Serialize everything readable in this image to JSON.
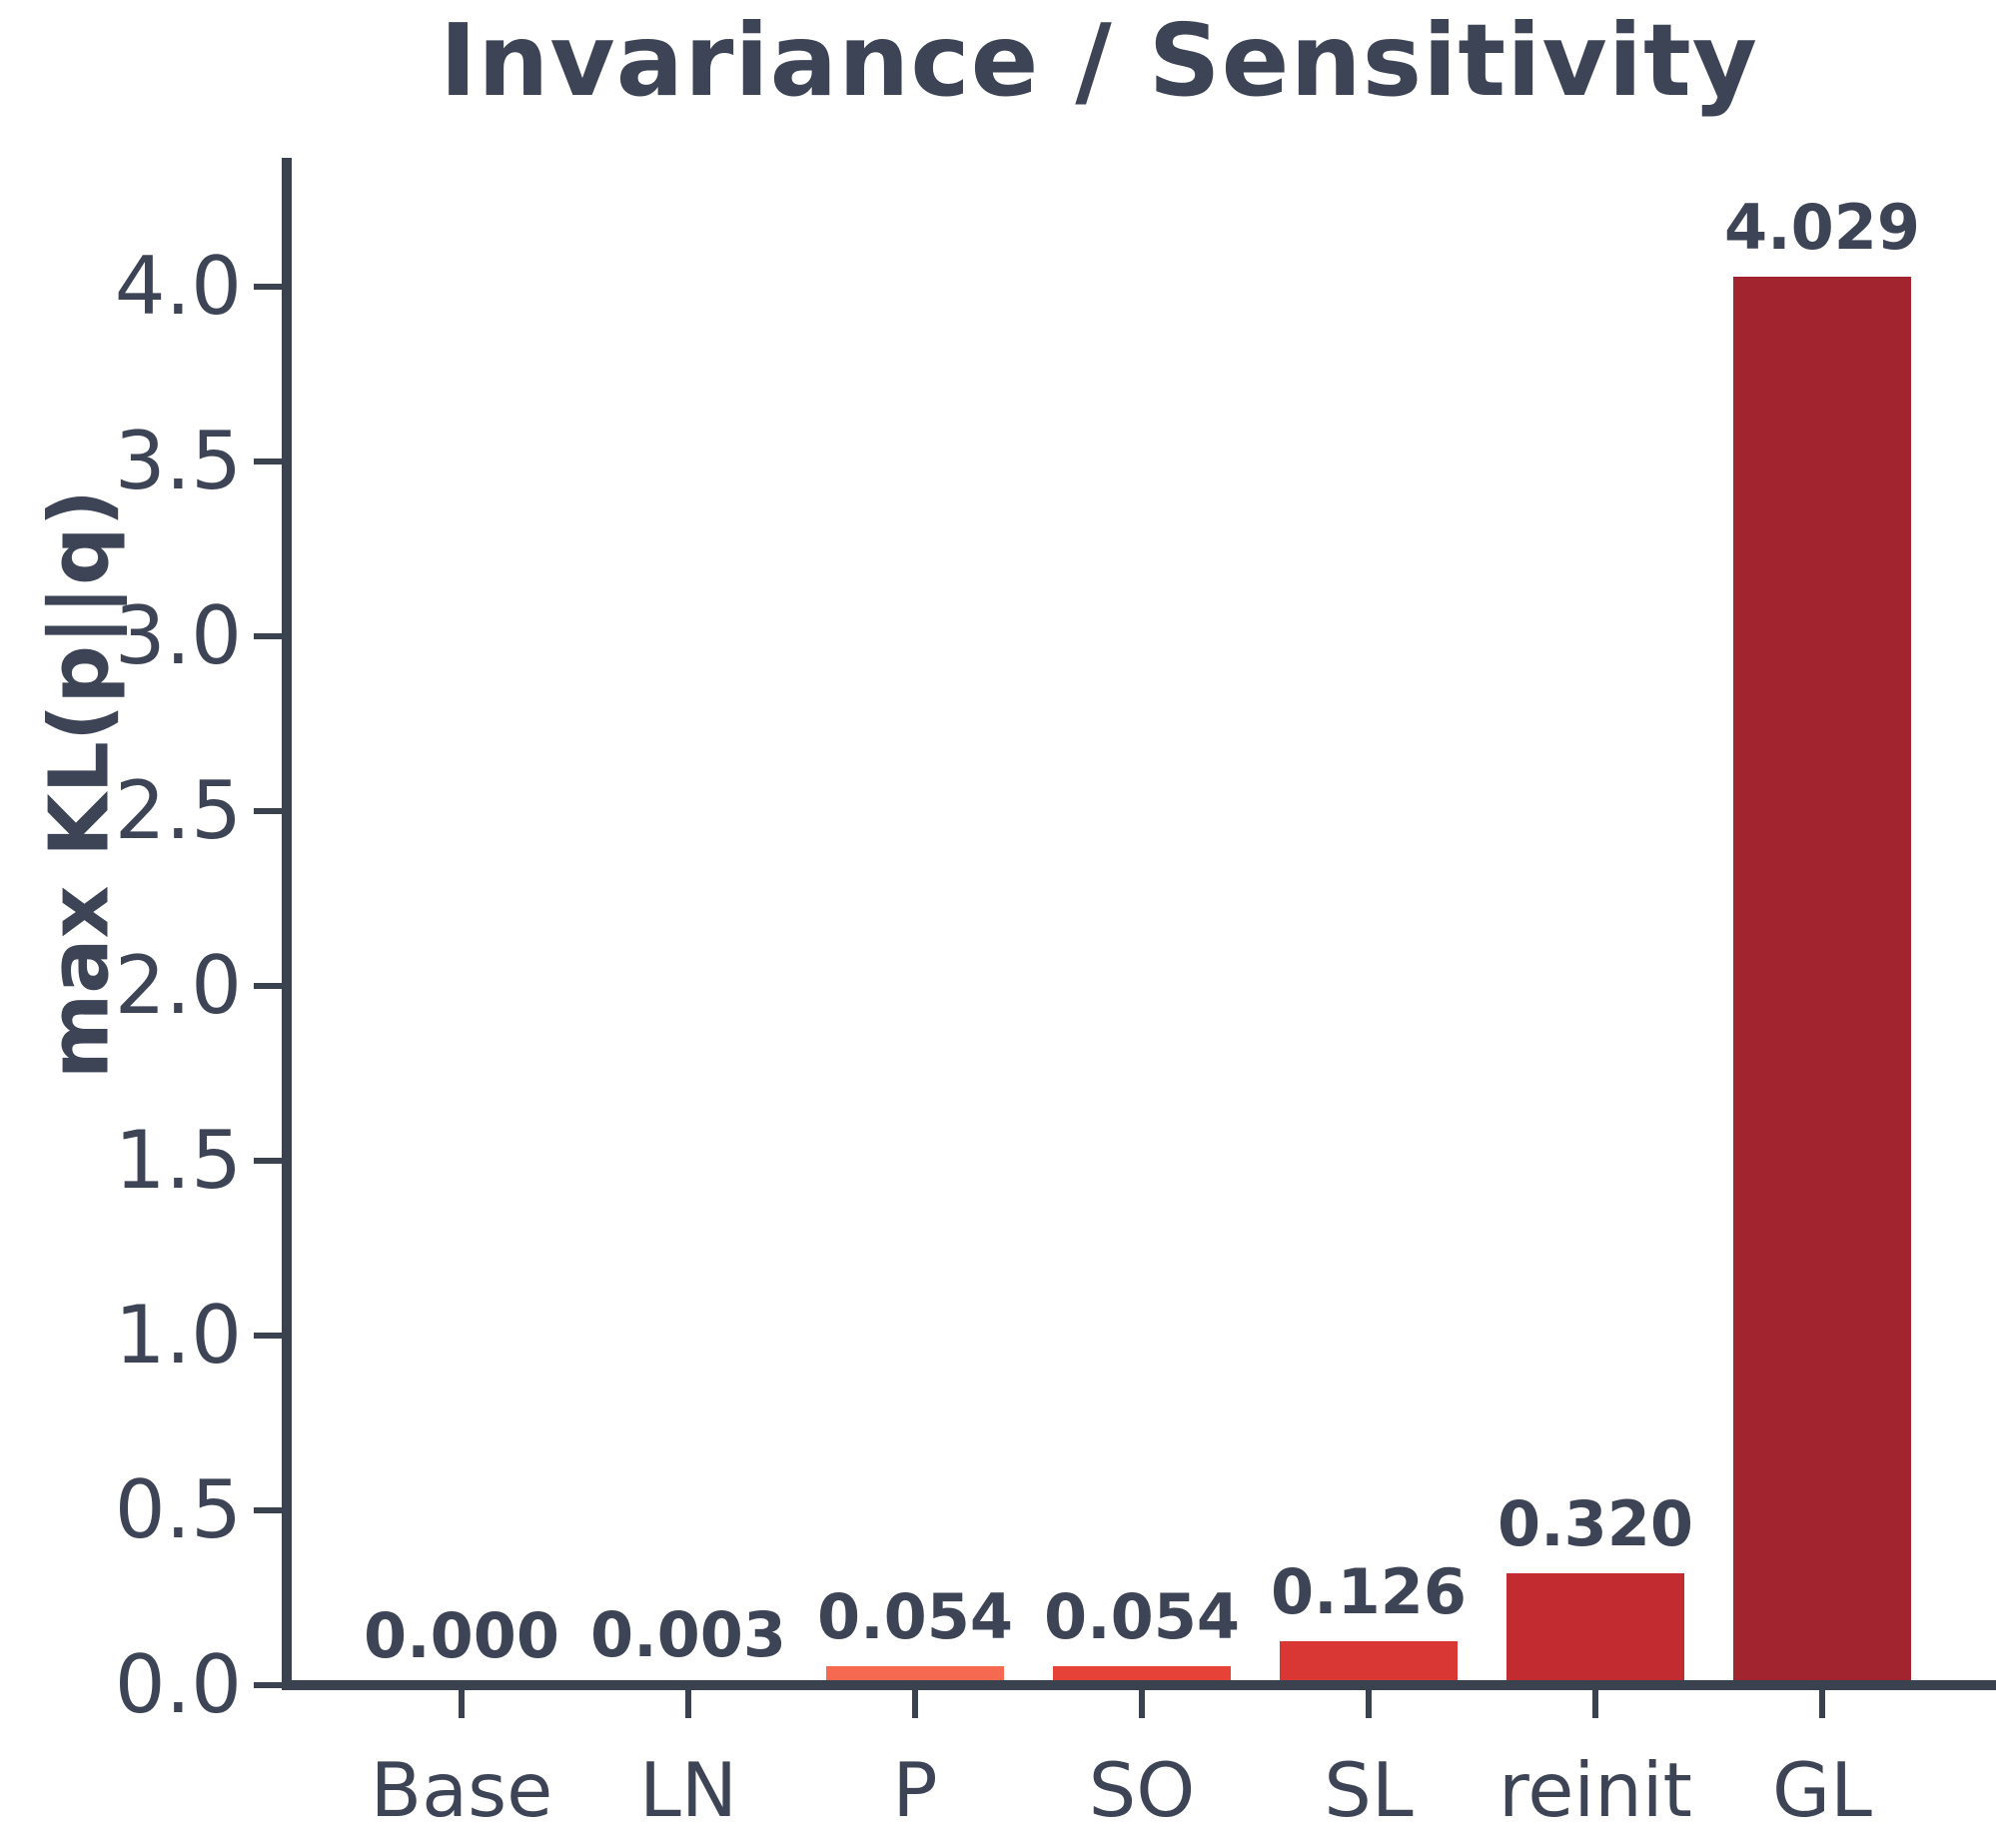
{
  "title": "Invariance / Sensitivity",
  "colors": {
    "background": "#ffffff",
    "text": "#3d4455",
    "axis": "#3a4250"
  },
  "chart_data": {
    "type": "bar",
    "title": "Invariance / Sensitivity",
    "xlabel": "",
    "ylabel": "max KL(p||q)",
    "categories": [
      "Base",
      "LN",
      "P",
      "SO",
      "SL",
      "reinit",
      "GL"
    ],
    "values": [
      0.0,
      0.003,
      0.054,
      0.054,
      0.126,
      0.32,
      4.029
    ],
    "value_labels": [
      "0.000",
      "0.003",
      "0.054",
      "0.054",
      "0.126",
      "0.320",
      "4.029"
    ],
    "bar_colors": [
      "#fd9779",
      "#f97f63",
      "#f4694f",
      "#e64237",
      "#d83733",
      "#c22b30",
      "#a2242e"
    ],
    "yticks": [
      "0.0",
      "0.5",
      "1.0",
      "1.5",
      "2.0",
      "2.5",
      "3.0",
      "3.5",
      "4.0"
    ],
    "ylim": [
      0,
      4.35
    ],
    "grid": false,
    "legend": null
  }
}
